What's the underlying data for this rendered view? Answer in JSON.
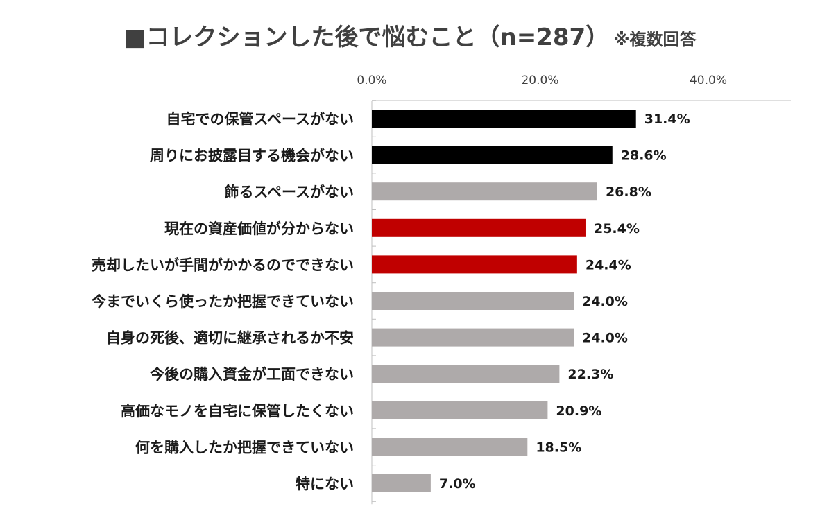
{
  "chart_data": {
    "type": "bar",
    "orientation": "horizontal",
    "title": "■コレクションした後で悩むこと（n=287）",
    "subtitle": "※複数回答",
    "categories": [
      "自宅での保管スペースがない",
      "周りにお披露目する機会がない",
      "飾るスペースがない",
      "現在の資産価値が分からない",
      "売却したいが手間がかかるのでできない",
      "今までいくら使ったか把握できていない",
      "自身の死後、適切に継承されるか不安",
      "今後の購入資金が工面できない",
      "高価なモノを自宅に保管したくない",
      "何を購入したか把握できていない",
      "特にない"
    ],
    "values": [
      31.4,
      28.6,
      26.8,
      25.4,
      24.4,
      24.0,
      24.0,
      22.3,
      20.9,
      18.5,
      7.0
    ],
    "value_labels": [
      "31.4%",
      "28.6%",
      "26.8%",
      "25.4%",
      "24.4%",
      "24.0%",
      "24.0%",
      "22.3%",
      "20.9%",
      "18.5%",
      "7.0%"
    ],
    "bar_colors": [
      "#000000",
      "#000000",
      "#aeaaaa",
      "#c00000",
      "#c00000",
      "#aeaaaa",
      "#aeaaaa",
      "#aeaaaa",
      "#aeaaaa",
      "#aeaaaa",
      "#aeaaaa"
    ],
    "xlim": [
      0,
      50
    ],
    "x_ticks": [
      0,
      20,
      40
    ],
    "x_tick_labels": [
      "0.0%",
      "20.0%",
      "40.0%"
    ],
    "axis_position": "top",
    "grid": false
  }
}
